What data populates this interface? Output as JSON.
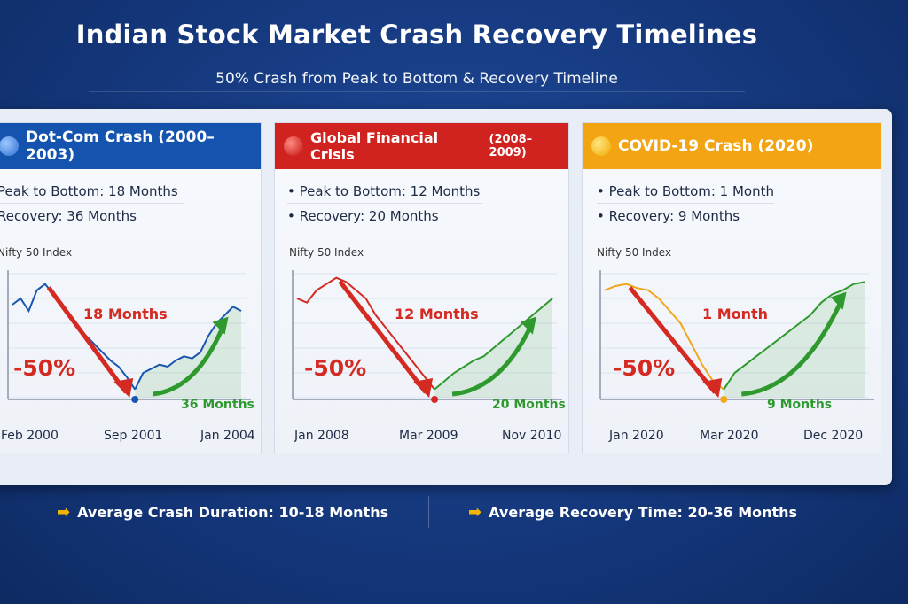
{
  "title": "Indian Stock Market Crash Recovery Timelines",
  "subtitle": "50% Crash from Peak to Bottom & Recovery Timeline",
  "colors": {
    "blue": "#1a56b0",
    "red": "#d42a22",
    "orange": "#f2a619",
    "green": "#2e9a2e"
  },
  "footer": {
    "crash": "Average Crash Duration: 10-18 Months",
    "recovery": "Average Recovery Time: 20-36 Months"
  },
  "chart_data": [
    {
      "type": "line",
      "title": "Dot-Com Crash (2000–2003)",
      "peak_to_bottom": "Peak to Bottom: 18 Months",
      "recovery": "Recovery: 36 Months",
      "ylabel": "Nifty 50 Index",
      "xticks": [
        "Feb 2000",
        "Sep 2001",
        "Jan 2004"
      ],
      "crash_label": "18 Months",
      "drop_label": "-50%",
      "recovery_label": "36 Months",
      "values": [
        85,
        88,
        82,
        92,
        95,
        90,
        86,
        80,
        74,
        70,
        66,
        62,
        58,
        55,
        50,
        44,
        52,
        54,
        56,
        55,
        58,
        60,
        59,
        62,
        70,
        76,
        80,
        84,
        82
      ],
      "bottom_index": 15
    },
    {
      "type": "line",
      "title": "Global Financial Crisis",
      "title_years": "(2008–2009)",
      "peak_to_bottom": "Peak to Bottom: 12 Months",
      "recovery": "Recovery: 20 Months",
      "ylabel": "Nifty 50 Index",
      "xticks": [
        "Jan 2008",
        "Mar 2009",
        "Nov 2010"
      ],
      "crash_label": "12 Months",
      "drop_label": "-50%",
      "recovery_label": "20 Months",
      "values": [
        88,
        86,
        92,
        95,
        98,
        96,
        92,
        88,
        80,
        74,
        68,
        62,
        56,
        50,
        44,
        48,
        52,
        55,
        58,
        60,
        64,
        68,
        72,
        76,
        80,
        84,
        88
      ],
      "bottom_index": 14
    },
    {
      "type": "line",
      "title": "COVID-19 Crash (2020)",
      "peak_to_bottom": "Peak to Bottom: 1 Month",
      "recovery": "Recovery: 9 Months",
      "ylabel": "Nifty 50 Index",
      "xticks": [
        "Jan 2020",
        "Mar 2020",
        "Dec 2020"
      ],
      "crash_label": "1 Month",
      "drop_label": "-50%",
      "recovery_label": "9 Months",
      "values": [
        92,
        94,
        95,
        93,
        92,
        88,
        82,
        76,
        66,
        56,
        48,
        44,
        52,
        56,
        60,
        64,
        68,
        72,
        76,
        80,
        86,
        90,
        92,
        95,
        96
      ],
      "bottom_index": 11
    }
  ]
}
